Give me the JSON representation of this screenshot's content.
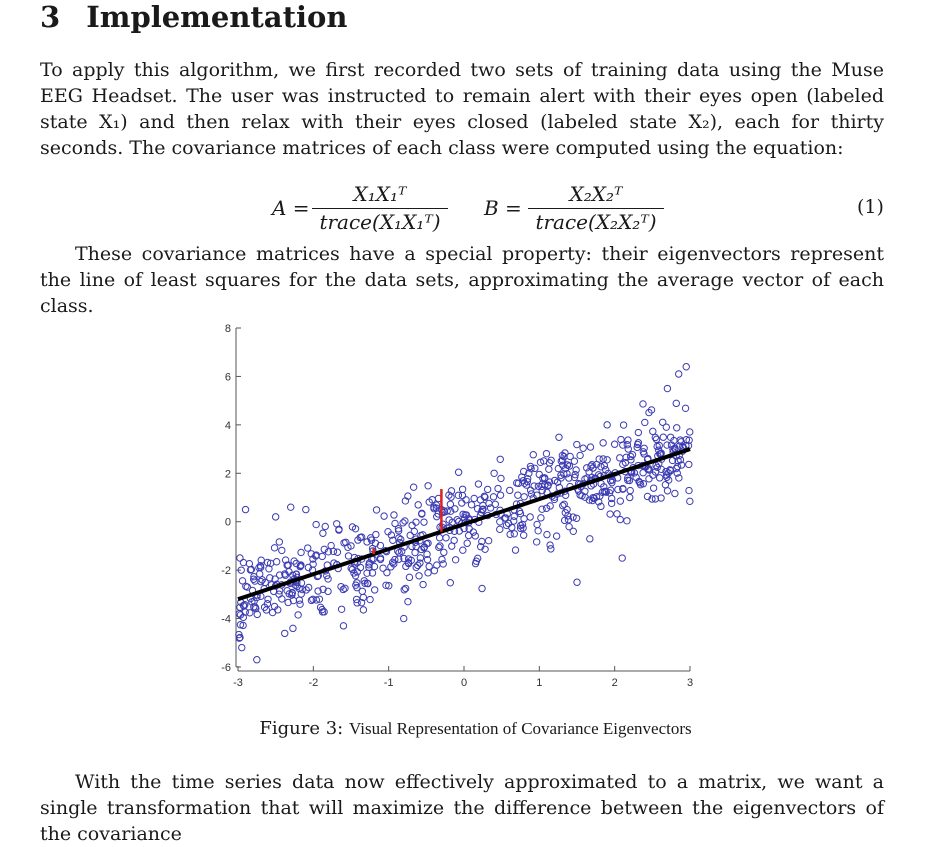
{
  "section": {
    "number": "3",
    "title": "Implementation"
  },
  "paragraphs": {
    "p1": "To apply this algorithm, we first recorded two sets of training data using the Muse EEG Headset. The user was instructed to remain alert with their eyes open (labeled state X₁) and then relax with their eyes closed (labeled state X₂), each for thirty seconds. The covariance matrices of each class were computed using the equation:",
    "p2": "These covariance matrices have a special property: their eigenvectors represent the line of least squares for the data sets, approximating the average vector of each class.",
    "p3": "With the time series data now effectively approximated to a matrix, we want a single transformation that will maximize the difference between the eigenvectors of the covariance"
  },
  "equation": {
    "a_lhs": "A =",
    "a_num": "X₁X₁ᵀ",
    "a_den": "trace(X₁X₁ᵀ)",
    "b_lhs": "B =",
    "b_num": "X₂X₂ᵀ",
    "b_den": "trace(X₂X₂ᵀ)",
    "number": "(1)"
  },
  "figure": {
    "label": "Figure 3:",
    "caption": "Visual Representation of Covariance Eigenvectors"
  },
  "chart_data": {
    "type": "scatter",
    "title": "",
    "xlabel": "",
    "ylabel": "",
    "xlim": [
      -3,
      3
    ],
    "ylim": [
      -6,
      8
    ],
    "xticks": [
      -3,
      -2,
      -1,
      0,
      1,
      2,
      3
    ],
    "yticks": [
      -6,
      -4,
      -2,
      0,
      2,
      4,
      6,
      8
    ],
    "grid": false,
    "marker_color": "#3b3bb3",
    "fit_line": {
      "x": [
        -3,
        3
      ],
      "y": [
        -3.2,
        3.0
      ],
      "color": "#000000"
    },
    "residual_color": "#e02020",
    "residuals": [
      {
        "x": -1.2,
        "y_point": -1.1,
        "y_line": -1.34
      },
      {
        "x": -0.3,
        "y_point": 1.35,
        "y_line": -0.41
      }
    ],
    "point_generation": {
      "count": 700,
      "slope": 1.03,
      "intercept": -0.1,
      "noise_sd": 1.0,
      "x_range": [
        -3,
        3
      ]
    },
    "outliers": [
      [
        -2.9,
        0.5
      ],
      [
        -2.95,
        -5.2
      ],
      [
        -2.75,
        -5.7
      ],
      [
        -2.5,
        0.2
      ],
      [
        -2.3,
        0.6
      ],
      [
        -2.1,
        0.5
      ],
      [
        -1.6,
        -4.3
      ],
      [
        -1.5,
        -1.0
      ],
      [
        -0.8,
        -4.0
      ],
      [
        -0.4,
        0.6
      ],
      [
        -0.2,
        1.1
      ],
      [
        0.4,
        2.0
      ],
      [
        0.7,
        1.6
      ],
      [
        1.4,
        2.3
      ],
      [
        1.5,
        -2.5
      ],
      [
        1.7,
        1.7
      ],
      [
        1.9,
        4.0
      ],
      [
        2.0,
        3.2
      ],
      [
        2.1,
        -1.5
      ],
      [
        2.2,
        1.0
      ],
      [
        2.4,
        4.1
      ],
      [
        2.7,
        5.5
      ],
      [
        2.85,
        6.1
      ],
      [
        2.95,
        6.4
      ],
      [
        2.6,
        2.8
      ]
    ]
  }
}
